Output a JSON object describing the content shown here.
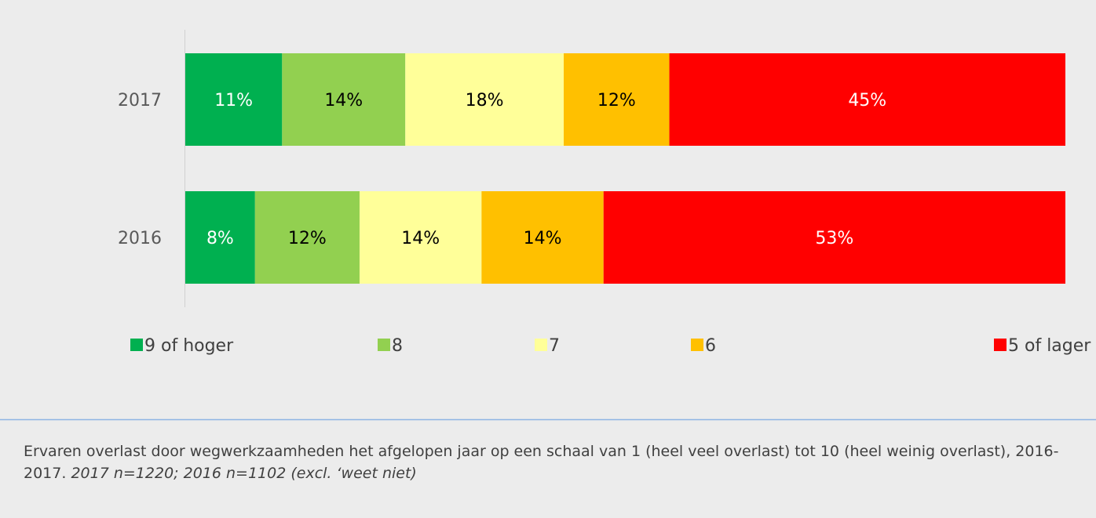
{
  "chart_data": {
    "type": "stacked-bar-horizontal",
    "stack": "percent",
    "categories": [
      "2017",
      "2016"
    ],
    "series": [
      {
        "name": "9 of hoger",
        "color": "#00b050",
        "label_color": "#ffffff",
        "values": [
          11,
          8
        ],
        "value_labels": [
          "11%",
          "8%"
        ]
      },
      {
        "name": "8",
        "color": "#92d050",
        "label_color": "#000000",
        "values": [
          14,
          12
        ],
        "value_labels": [
          "14%",
          "12%"
        ]
      },
      {
        "name": "7",
        "color": "#ffff99",
        "label_color": "#000000",
        "values": [
          18,
          14
        ],
        "value_labels": [
          "18%",
          "14%"
        ]
      },
      {
        "name": "6",
        "color": "#ffc000",
        "label_color": "#000000",
        "values": [
          12,
          14
        ],
        "value_labels": [
          "12%",
          "14%"
        ]
      },
      {
        "name": "5 of lager",
        "color": "#ff0000",
        "label_color": "#ffffff",
        "values": [
          45,
          53
        ],
        "value_labels": [
          "45%",
          "53%"
        ]
      }
    ],
    "legend": "bottom",
    "caption": "Ervaren overlast door wegwerkzaamheden het afgelopen jaar op een schaal van 1 (heel veel overlast) tot 10 (heel weinig overlast), 2016-2017.",
    "caption_note": "2017 n=1220; 2016 n=1102 (excl. ‘weet niet)"
  }
}
